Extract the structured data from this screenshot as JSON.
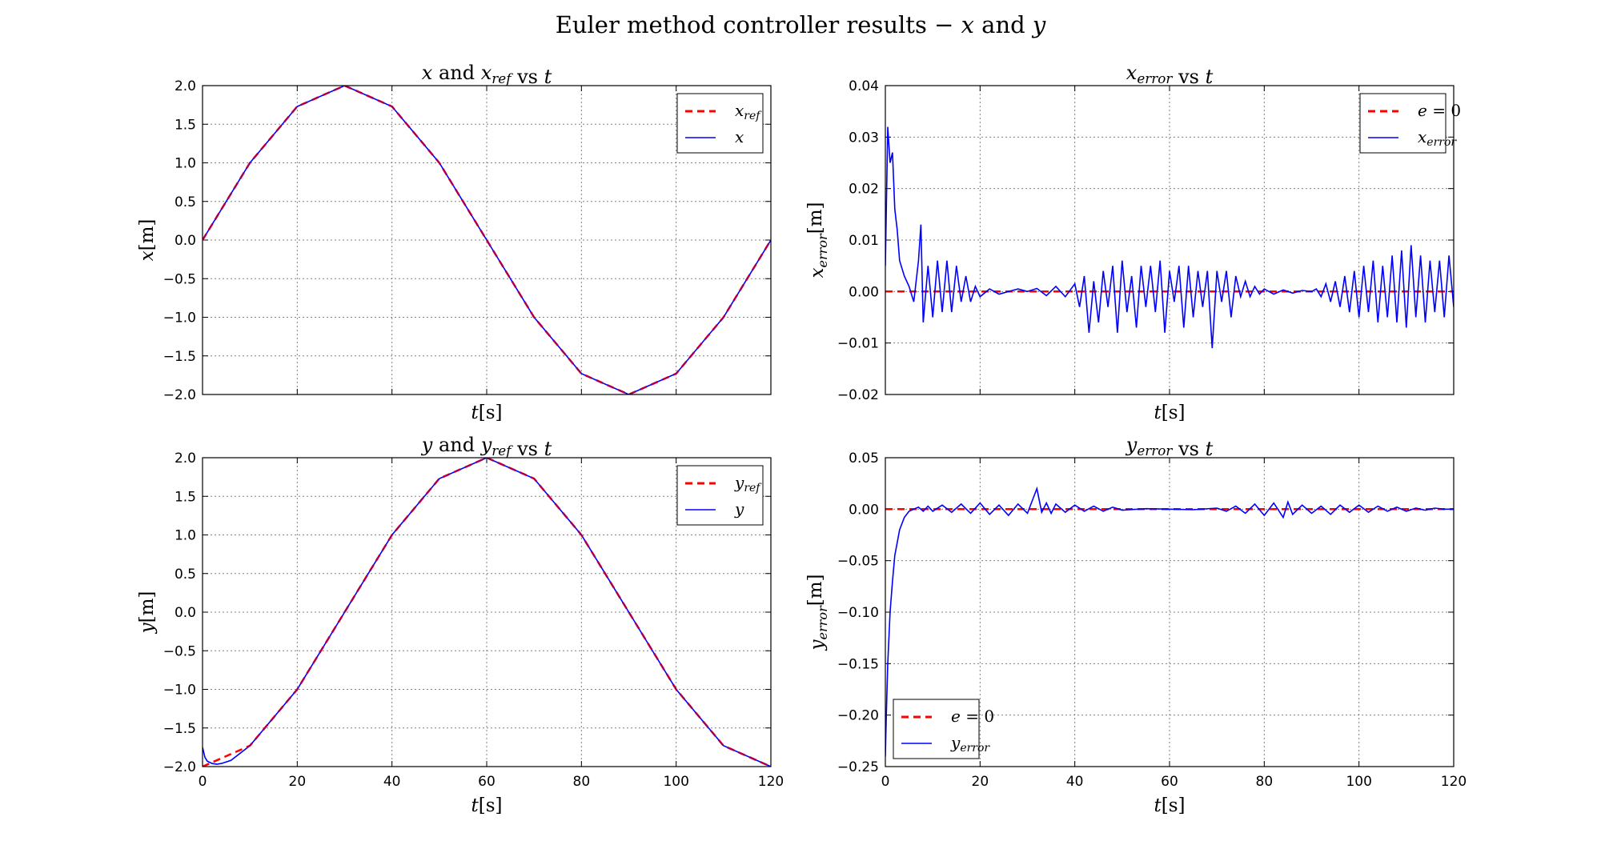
{
  "figure": {
    "title_prefix": "Euler method controller results",
    "title_dash": "−",
    "title_x": "x",
    "title_and": "and",
    "title_y": "y"
  },
  "colors": {
    "reference": "#ff0000",
    "signal": "#0000ff",
    "grid": "#808080"
  },
  "chart_data": [
    {
      "id": "x-plot",
      "type": "line",
      "title": "x and x_ref vs t",
      "xlabel": "t[s]",
      "ylabel": "x[m]",
      "xlim": [
        0,
        120
      ],
      "ylim": [
        -2.0,
        2.0
      ],
      "yticks": [
        "2.0",
        "1.5",
        "1.0",
        "0.5",
        "0.0",
        "−0.5",
        "−1.0",
        "−1.5",
        "−2.0"
      ],
      "xticks": [
        "0",
        "20",
        "40",
        "60",
        "80",
        "100",
        "120"
      ],
      "show_xtick_labels": false,
      "grid": true,
      "legend": "top-right",
      "series": [
        {
          "name": "x_ref",
          "style": "dashed",
          "color": "#ff0000",
          "x": [
            0,
            10,
            20,
            30,
            40,
            50,
            60,
            70,
            80,
            90,
            100,
            110,
            120
          ],
          "y": [
            0.0,
            1.0,
            1.73,
            2.0,
            1.73,
            1.0,
            0.0,
            -1.0,
            -1.73,
            -2.0,
            -1.73,
            -1.0,
            0.0
          ]
        },
        {
          "name": "x",
          "style": "solid",
          "color": "#0000ff",
          "x": [
            0,
            10,
            20,
            30,
            40,
            50,
            60,
            70,
            80,
            90,
            100,
            110,
            120
          ],
          "y": [
            0.0,
            1.0,
            1.73,
            2.0,
            1.73,
            1.0,
            0.0,
            -1.0,
            -1.73,
            -2.0,
            -1.73,
            -1.0,
            0.0
          ]
        }
      ]
    },
    {
      "id": "xerr-plot",
      "type": "line",
      "title": "x_error vs t",
      "xlabel": "t[s]",
      "ylabel": "x_error[m]",
      "xlim": [
        0,
        120
      ],
      "ylim": [
        -0.02,
        0.04
      ],
      "yticks": [
        "0.04",
        "0.03",
        "0.02",
        "0.01",
        "0.00",
        "−0.01",
        "−0.02"
      ],
      "xticks": [
        "0",
        "20",
        "40",
        "60",
        "80",
        "100",
        "120"
      ],
      "show_xtick_labels": false,
      "grid": true,
      "legend": "top-right",
      "series": [
        {
          "name": "e = 0",
          "style": "dashed",
          "color": "#ff0000",
          "x": [
            0,
            120
          ],
          "y": [
            0,
            0
          ]
        },
        {
          "name": "x_error",
          "style": "solid",
          "color": "#0000ff",
          "x": [
            0,
            0.5,
            1,
            1.5,
            2,
            2.5,
            3,
            4,
            5,
            6,
            7,
            7.5,
            8,
            9,
            10,
            11,
            12,
            13,
            14,
            15,
            16,
            17,
            18,
            19,
            20,
            22,
            24,
            26,
            28,
            30,
            32,
            34,
            36,
            38,
            40,
            41,
            42,
            43,
            44,
            45,
            46,
            47,
            48,
            49,
            50,
            51,
            52,
            53,
            54,
            55,
            56,
            57,
            58,
            59,
            60,
            61,
            62,
            63,
            64,
            65,
            66,
            67,
            68,
            69,
            70,
            71,
            72,
            73,
            74,
            75,
            76,
            77,
            78,
            79,
            80,
            82,
            84,
            86,
            88,
            90,
            91,
            92,
            93,
            94,
            95,
            96,
            97,
            98,
            99,
            100,
            101,
            102,
            103,
            104,
            105,
            106,
            107,
            108,
            109,
            110,
            111,
            112,
            113,
            114,
            115,
            116,
            117,
            118,
            119,
            120
          ],
          "y": [
            0.005,
            0.032,
            0.025,
            0.027,
            0.016,
            0.012,
            0.006,
            0.003,
            0.001,
            -0.002,
            0.006,
            0.013,
            -0.006,
            0.005,
            -0.005,
            0.006,
            -0.004,
            0.006,
            -0.004,
            0.005,
            -0.002,
            0.003,
            -0.002,
            0.001,
            -0.001,
            0.0005,
            -0.0005,
            0.0,
            0.0005,
            0.0,
            0.0006,
            -0.0008,
            0.001,
            -0.001,
            0.0015,
            -0.003,
            0.003,
            -0.008,
            0.002,
            -0.006,
            0.004,
            -0.003,
            0.005,
            -0.008,
            0.006,
            -0.004,
            0.003,
            -0.007,
            0.005,
            -0.003,
            0.005,
            -0.004,
            0.006,
            -0.008,
            0.004,
            -0.002,
            0.005,
            -0.007,
            0.005,
            -0.005,
            0.004,
            -0.003,
            0.004,
            -0.011,
            0.004,
            -0.002,
            0.004,
            -0.005,
            0.003,
            -0.001,
            0.002,
            -0.001,
            0.001,
            -0.0005,
            0.0005,
            -0.0005,
            0.0003,
            -0.0003,
            0.0002,
            0.0,
            0.0005,
            -0.001,
            0.0015,
            -0.002,
            0.002,
            -0.003,
            0.003,
            -0.004,
            0.004,
            -0.005,
            0.005,
            -0.004,
            0.006,
            -0.006,
            0.005,
            -0.005,
            0.007,
            -0.006,
            0.008,
            -0.007,
            0.009,
            -0.005,
            0.007,
            -0.006,
            0.006,
            -0.004,
            0.006,
            -0.005,
            0.007,
            -0.003
          ]
        }
      ]
    },
    {
      "id": "y-plot",
      "type": "line",
      "title": "y and y_ref vs t",
      "xlabel": "t[s]",
      "ylabel": "y[m]",
      "xlim": [
        0,
        120
      ],
      "ylim": [
        -2.0,
        2.0
      ],
      "yticks": [
        "2.0",
        "1.5",
        "1.0",
        "0.5",
        "0.0",
        "−0.5",
        "−1.0",
        "−1.5",
        "−2.0"
      ],
      "xticks": [
        "0",
        "20",
        "40",
        "60",
        "80",
        "100",
        "120"
      ],
      "show_xtick_labels": true,
      "grid": true,
      "legend": "top-right",
      "series": [
        {
          "name": "y_ref",
          "style": "dashed",
          "color": "#ff0000",
          "x": [
            0,
            10,
            20,
            30,
            40,
            50,
            60,
            70,
            80,
            90,
            100,
            110,
            120
          ],
          "y": [
            -2.0,
            -1.73,
            -1.0,
            0.0,
            1.0,
            1.73,
            2.0,
            1.73,
            1.0,
            0.0,
            -1.0,
            -1.73,
            -2.0
          ]
        },
        {
          "name": "y",
          "style": "solid",
          "color": "#0000ff",
          "x": [
            0,
            0.5,
            1,
            2,
            3,
            4,
            6,
            10,
            20,
            30,
            40,
            50,
            60,
            70,
            80,
            90,
            100,
            110,
            120
          ],
          "y": [
            -1.75,
            -1.88,
            -1.93,
            -1.96,
            -1.97,
            -1.96,
            -1.92,
            -1.73,
            -1.0,
            0.0,
            1.0,
            1.73,
            2.0,
            1.73,
            1.0,
            0.0,
            -1.0,
            -1.73,
            -2.0
          ]
        }
      ]
    },
    {
      "id": "yerr-plot",
      "type": "line",
      "title": "y_error vs t",
      "xlabel": "t[s]",
      "ylabel": "y_error[m]",
      "xlim": [
        0,
        120
      ],
      "ylim": [
        -0.25,
        0.05
      ],
      "yticks": [
        "0.05",
        "0.00",
        "−0.05",
        "−0.10",
        "−0.15",
        "−0.20",
        "−0.25"
      ],
      "xticks": [
        "0",
        "20",
        "40",
        "60",
        "80",
        "100",
        "120"
      ],
      "show_xtick_labels": true,
      "grid": true,
      "legend": "bottom-left",
      "series": [
        {
          "name": "e = 0",
          "style": "dashed",
          "color": "#ff0000",
          "x": [
            0,
            120
          ],
          "y": [
            0,
            0
          ]
        },
        {
          "name": "y_error",
          "style": "solid",
          "color": "#0000ff",
          "x": [
            0,
            0.2,
            0.5,
            1,
            1.5,
            2,
            3,
            4,
            5,
            6,
            7,
            8,
            9,
            10,
            12,
            14,
            16,
            18,
            20,
            22,
            24,
            26,
            28,
            30,
            31,
            32,
            33,
            34,
            35,
            36,
            38,
            40,
            42,
            44,
            46,
            48,
            50,
            55,
            60,
            65,
            70,
            72,
            74,
            76,
            78,
            80,
            82,
            84,
            85,
            86,
            88,
            90,
            92,
            94,
            96,
            98,
            100,
            102,
            104,
            106,
            108,
            110,
            112,
            114,
            116,
            118,
            120
          ],
          "y": [
            -0.24,
            -0.2,
            -0.15,
            -0.1,
            -0.07,
            -0.045,
            -0.02,
            -0.008,
            -0.002,
            0.0,
            0.002,
            -0.002,
            0.003,
            -0.002,
            0.004,
            -0.003,
            0.005,
            -0.004,
            0.006,
            -0.005,
            0.004,
            -0.006,
            0.005,
            -0.004,
            0.008,
            0.02,
            -0.003,
            0.006,
            -0.004,
            0.005,
            -0.003,
            0.004,
            -0.002,
            0.003,
            -0.002,
            0.002,
            -0.001,
            0.0005,
            0.0,
            -0.0005,
            0.001,
            -0.002,
            0.003,
            -0.004,
            0.005,
            -0.006,
            0.006,
            -0.008,
            0.007,
            -0.005,
            0.004,
            -0.004,
            0.003,
            -0.005,
            0.004,
            -0.003,
            0.004,
            -0.003,
            0.003,
            -0.002,
            0.002,
            -0.002,
            0.001,
            -0.001,
            0.001,
            0.0,
            0.0
          ]
        }
      ]
    }
  ]
}
